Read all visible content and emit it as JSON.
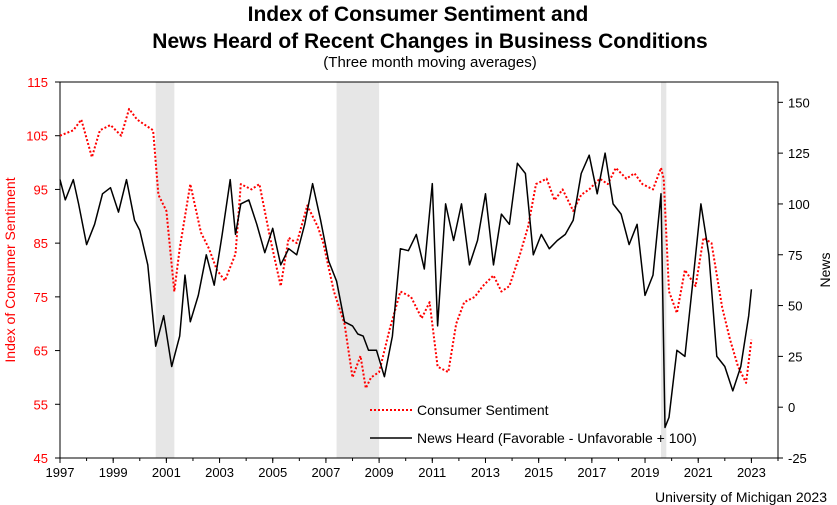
{
  "chart_data": {
    "type": "line",
    "title_line1": "Index of Consumer Sentiment and",
    "title_line2": "News Heard of Recent Changes in Business Conditions",
    "subtitle": "(Three month moving averages)",
    "source": "University of Michigan 2023",
    "xlim": [
      1997,
      2024
    ],
    "x_ticks": [
      "1997",
      "1999",
      "2001",
      "2003",
      "2005",
      "2007",
      "2009",
      "2011",
      "2013",
      "2015",
      "2017",
      "2019",
      "2021",
      "2023"
    ],
    "left_axis": {
      "label": "Index of Consumer Sentiment",
      "range": [
        45,
        115
      ],
      "ticks": [
        "45",
        "55",
        "65",
        "75",
        "85",
        "95",
        "105",
        "115"
      ],
      "color": "#ff0000"
    },
    "right_axis": {
      "label": "News",
      "range": [
        -25,
        160
      ],
      "ticks": [
        "-25",
        "0",
        "25",
        "50",
        "75",
        "100",
        "125",
        "150"
      ],
      "color": "#000000"
    },
    "recessions": [
      [
        2000.6,
        2001.3
      ],
      [
        2007.4,
        2009.0
      ],
      [
        2019.6,
        2019.8
      ]
    ],
    "series": [
      {
        "name": "Consumer Sentiment",
        "axis": "left",
        "style": "dotted",
        "color": "#ff0000",
        "x": [
          1997.0,
          1997.5,
          1997.8,
          1998.2,
          1998.5,
          1998.9,
          1999.3,
          1999.6,
          1999.9,
          2000.5,
          2000.7,
          2001.0,
          2001.3,
          2001.5,
          2001.9,
          2002.3,
          2002.6,
          2002.9,
          2003.2,
          2003.6,
          2003.8,
          2004.2,
          2004.5,
          2004.9,
          2005.3,
          2005.6,
          2005.9,
          2006.3,
          2006.7,
          2006.9,
          2007.3,
          2007.7,
          2008.0,
          2008.3,
          2008.5,
          2008.7,
          2009.0,
          2009.4,
          2009.8,
          2010.2,
          2010.6,
          2010.9,
          2011.2,
          2011.6,
          2011.9,
          2012.2,
          2012.6,
          2012.9,
          2013.3,
          2013.6,
          2013.9,
          2014.3,
          2014.6,
          2014.9,
          2015.3,
          2015.6,
          2015.9,
          2016.3,
          2016.6,
          2016.9,
          2017.3,
          2017.6,
          2017.9,
          2018.3,
          2018.6,
          2018.9,
          2019.3,
          2019.6,
          2019.7,
          2019.9,
          2020.2,
          2020.5,
          2020.9,
          2021.2,
          2021.5,
          2021.9,
          2022.2,
          2022.5,
          2022.8,
          2023.0
        ],
        "values": [
          105,
          106,
          108,
          101,
          106,
          107,
          105,
          110,
          108,
          106,
          94,
          91,
          76,
          84,
          96,
          87,
          84,
          80,
          78,
          83,
          96,
          95,
          96,
          86,
          77,
          86,
          85,
          92,
          88,
          85,
          76,
          70,
          60,
          64,
          58,
          60,
          61,
          69,
          76,
          75,
          71,
          74,
          62,
          61,
          70,
          74,
          75,
          77,
          79,
          76,
          77,
          83,
          88,
          96,
          97,
          93,
          95,
          91,
          94,
          95,
          97,
          96,
          99,
          97,
          98,
          96,
          95,
          99,
          97,
          76,
          72,
          80,
          77,
          86,
          85,
          73,
          67,
          62,
          59,
          67
        ]
      },
      {
        "name": "News Heard (Favorable - Unfavorable + 100)",
        "axis": "right",
        "style": "solid",
        "color": "#000000",
        "x": [
          1997.0,
          1997.2,
          1997.5,
          1997.7,
          1998.0,
          1998.3,
          1998.6,
          1998.9,
          1999.2,
          1999.5,
          1999.8,
          2000.0,
          2000.3,
          2000.6,
          2000.9,
          2001.2,
          2001.5,
          2001.7,
          2001.9,
          2002.2,
          2002.5,
          2002.8,
          2003.1,
          2003.4,
          2003.6,
          2003.8,
          2004.1,
          2004.4,
          2004.7,
          2005.0,
          2005.3,
          2005.6,
          2005.9,
          2006.2,
          2006.5,
          2006.8,
          2007.1,
          2007.4,
          2007.7,
          2008.0,
          2008.2,
          2008.4,
          2008.6,
          2008.9,
          2009.2,
          2009.5,
          2009.8,
          2010.1,
          2010.4,
          2010.7,
          2011.0,
          2011.2,
          2011.5,
          2011.8,
          2012.1,
          2012.4,
          2012.7,
          2013.0,
          2013.3,
          2013.6,
          2013.9,
          2014.2,
          2014.5,
          2014.8,
          2015.1,
          2015.4,
          2015.7,
          2016.0,
          2016.3,
          2016.6,
          2016.9,
          2017.2,
          2017.5,
          2017.8,
          2018.1,
          2018.4,
          2018.7,
          2019.0,
          2019.3,
          2019.6,
          2019.75,
          2019.9,
          2020.2,
          2020.5,
          2020.8,
          2021.1,
          2021.4,
          2021.7,
          2022.0,
          2022.3,
          2022.6,
          2022.9,
          2023.0
        ],
        "values": [
          112,
          102,
          112,
          100,
          80,
          90,
          105,
          108,
          96,
          112,
          92,
          87,
          70,
          30,
          45,
          20,
          35,
          65,
          42,
          55,
          75,
          60,
          85,
          112,
          85,
          100,
          102,
          90,
          76,
          88,
          70,
          78,
          75,
          90,
          110,
          92,
          72,
          62,
          42,
          40,
          36,
          35,
          28,
          28,
          15,
          35,
          78,
          77,
          85,
          68,
          110,
          40,
          100,
          82,
          100,
          70,
          82,
          105,
          70,
          95,
          90,
          120,
          115,
          75,
          85,
          78,
          82,
          85,
          92,
          115,
          124,
          105,
          125,
          100,
          95,
          80,
          90,
          55,
          65,
          105,
          -10,
          -5,
          28,
          25,
          62,
          100,
          75,
          25,
          20,
          8,
          20,
          45,
          58
        ]
      }
    ]
  }
}
